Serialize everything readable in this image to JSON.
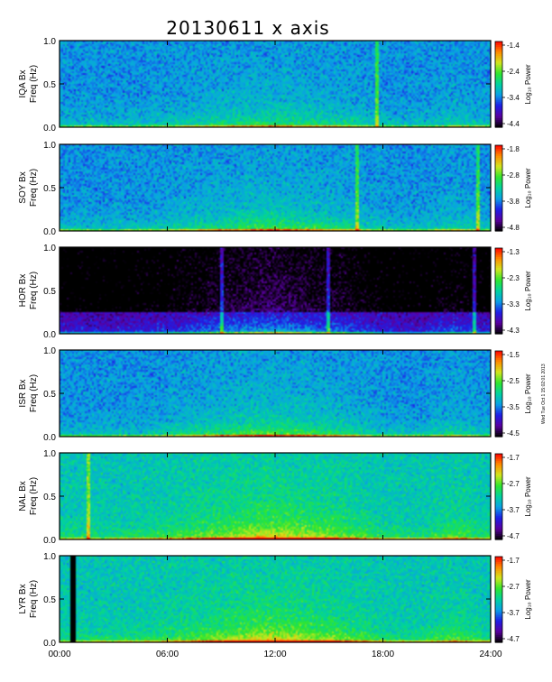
{
  "chart_data": {
    "type": "heatmap",
    "title": "20130611 x axis",
    "stamp": "Wed Tue Oct 1 15:02:01 2013",
    "x_ticks": [
      "00:00",
      "06:00",
      "12:00",
      "18:00",
      "24:00"
    ],
    "xlim_hours": [
      0,
      24
    ],
    "ylim_hz": [
      0.0,
      1.0
    ],
    "y_ticks": [
      "0.0",
      "0.5",
      "1.0"
    ],
    "colorbar_label": "Log₁₀ Power",
    "colormap": [
      "#000000",
      "#5a00a0",
      "#1e1ee6",
      "#0aa0e6",
      "#00d2a0",
      "#2ee62e",
      "#d2e61e",
      "#ff8c00",
      "#ff0000"
    ],
    "panels": [
      {
        "station": "IQA",
        "label_line1": "IQA Bx",
        "label_line2": "Freq (Hz)",
        "cb_ticks": [
          "-1.4",
          "-2.4",
          "-3.4",
          "-4.4"
        ],
        "clim": [
          -4.4,
          -1.4
        ],
        "background": -3.3,
        "activity": 0.55,
        "quiet": 0.0,
        "blackout": null,
        "spikes_hours": [
          17.7
        ]
      },
      {
        "station": "SOY",
        "label_line1": "SOY Bx",
        "label_line2": "Freq (Hz)",
        "cb_ticks": [
          "-1.8",
          "-2.8",
          "-3.8",
          "-4.8"
        ],
        "clim": [
          -4.8,
          -1.8
        ],
        "background": -3.7,
        "activity": 0.7,
        "quiet": 0.0,
        "blackout": null,
        "spikes_hours": [
          16.6,
          23.3
        ]
      },
      {
        "station": "HOR",
        "label_line1": "HOR Bx",
        "label_line2": "Freq (Hz)",
        "cb_ticks": [
          "-1.3",
          "-2.3",
          "-3.3",
          "-4.3"
        ],
        "clim": [
          -4.3,
          -1.3
        ],
        "background": -3.9,
        "activity": 0.75,
        "quiet": 0.6,
        "blackout": null,
        "spikes_hours": [
          9.0,
          15.0,
          23.1
        ]
      },
      {
        "station": "ISR",
        "label_line1": "ISR Bx",
        "label_line2": "Freq (Hz)",
        "cb_ticks": [
          "-1.5",
          "-2.5",
          "-3.5",
          "-4.5"
        ],
        "clim": [
          -4.5,
          -1.5
        ],
        "background": -3.4,
        "activity": 0.8,
        "quiet": 0.0,
        "blackout": null,
        "spikes_hours": []
      },
      {
        "station": "NAL",
        "label_line1": "NAL Bx",
        "label_line2": "Freq (Hz)",
        "cb_ticks": [
          "-1.7",
          "-2.7",
          "-3.7",
          "-4.7"
        ],
        "clim": [
          -4.7,
          -1.7
        ],
        "background": -3.3,
        "activity": 1.0,
        "quiet": 0.0,
        "blackout": null,
        "spikes_hours": [
          1.6
        ]
      },
      {
        "station": "LYR",
        "label_line1": "LYR Bx",
        "label_line2": "Freq (Hz)",
        "cb_ticks": [
          "-1.7",
          "-2.7",
          "-3.7",
          "-4.7"
        ],
        "clim": [
          -4.7,
          -1.7
        ],
        "background": -3.3,
        "activity": 0.95,
        "quiet": 0.0,
        "blackout": [
          0.65,
          0.95
        ],
        "spikes_hours": []
      }
    ]
  }
}
